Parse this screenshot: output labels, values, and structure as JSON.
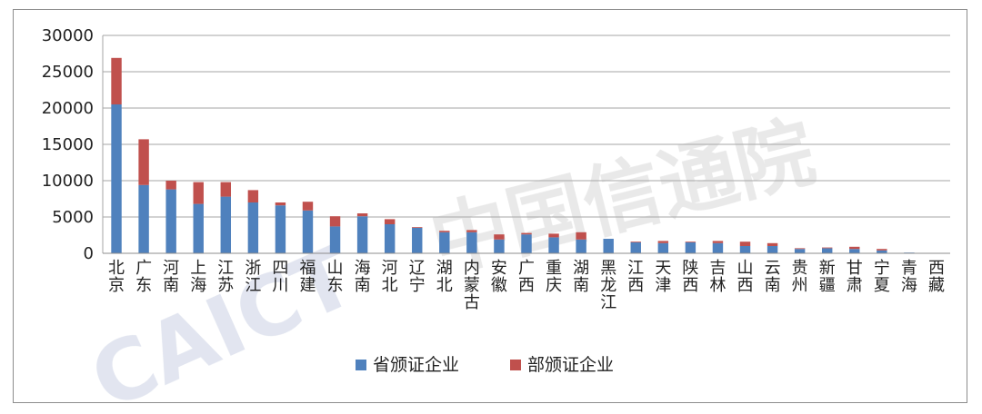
{
  "chart_data": {
    "type": "bar",
    "stacked": true,
    "title": "",
    "xlabel": "",
    "ylabel": "",
    "ylim": [
      0,
      30000
    ],
    "yticks": [
      0,
      5000,
      10000,
      15000,
      20000,
      25000,
      30000
    ],
    "grid": true,
    "legend": "bottom",
    "categories": [
      "北京",
      "广东",
      "河南",
      "上海",
      "江苏",
      "浙江",
      "四川",
      "福建",
      "山东",
      "海南",
      "河北",
      "辽宁",
      "湖北",
      "内蒙古",
      "安徽",
      "广西",
      "重庆",
      "湖南",
      "黑龙江",
      "江西",
      "天津",
      "陕西",
      "吉林",
      "山西",
      "云南",
      "贵州",
      "新疆",
      "甘肃",
      "宁夏",
      "青海",
      "西藏"
    ],
    "series": [
      {
        "name": "省颁证企业",
        "color": "#4f81bd",
        "values": [
          20500,
          9400,
          8800,
          6800,
          7800,
          7000,
          6600,
          5900,
          3700,
          5100,
          4000,
          3500,
          2900,
          2900,
          1900,
          2600,
          2200,
          1900,
          2000,
          1500,
          1400,
          1500,
          1400,
          1000,
          1000,
          600,
          700,
          600,
          400,
          100,
          0
        ]
      },
      {
        "name": "部颁证企业",
        "color": "#c0504d",
        "values": [
          6400,
          6300,
          1200,
          3000,
          2000,
          1700,
          400,
          1200,
          1400,
          400,
          700,
          100,
          200,
          300,
          700,
          200,
          500,
          1000,
          0,
          100,
          300,
          100,
          300,
          600,
          400,
          100,
          100,
          300,
          200,
          0,
          0
        ]
      }
    ]
  },
  "watermark": {
    "text": "中国信通院",
    "logo": "CAICT"
  }
}
